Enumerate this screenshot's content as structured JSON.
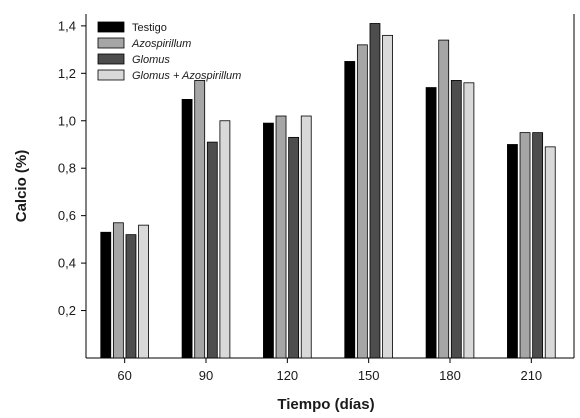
{
  "chart_data": {
    "type": "bar",
    "title": "",
    "xlabel": "Tiempo (días)",
    "ylabel": "Calcio (%)",
    "categories": [
      "60",
      "90",
      "120",
      "150",
      "180",
      "210"
    ],
    "ylim": [
      0,
      1.45
    ],
    "yticks": [
      0.2,
      0.4,
      0.6,
      0.8,
      1.0,
      1.2,
      1.4
    ],
    "ytick_labels": [
      "0,2",
      "0,4",
      "0,6",
      "0,8",
      "1,0",
      "1,2",
      "1,4"
    ],
    "legend_position": "top-left",
    "grid": false,
    "series": [
      {
        "name": "Testigo",
        "italic": false,
        "color": "#000000",
        "values": [
          0.53,
          1.09,
          0.99,
          1.25,
          1.14,
          0.9
        ]
      },
      {
        "name": "Azospirillum",
        "italic": true,
        "color": "#a6a6a6",
        "values": [
          0.57,
          1.17,
          1.02,
          1.32,
          1.34,
          0.95
        ]
      },
      {
        "name": "Glomus",
        "italic": true,
        "color": "#4d4d4d",
        "values": [
          0.52,
          0.91,
          0.93,
          1.41,
          1.17,
          0.95
        ]
      },
      {
        "name": "Glomus + Azospirillum",
        "italic": true,
        "color": "#d9d9d9",
        "values": [
          0.56,
          1.0,
          1.02,
          1.36,
          1.16,
          0.89
        ]
      }
    ]
  }
}
